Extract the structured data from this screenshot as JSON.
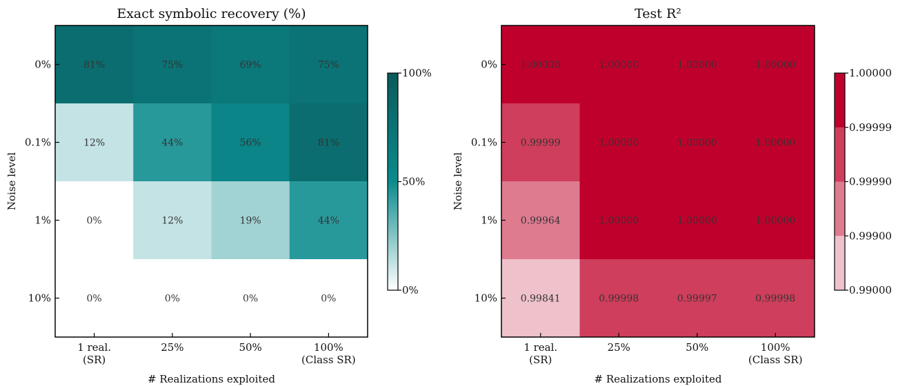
{
  "chart_data": [
    {
      "type": "heatmap",
      "title": "Exact symbolic recovery (%)",
      "xlabel": "# Realizations exploited",
      "ylabel": "Noise level",
      "x_categories": [
        [
          "1 real.",
          "(SR)"
        ],
        [
          "25%"
        ],
        [
          "50%"
        ],
        [
          "100%",
          "(Class SR)"
        ]
      ],
      "y_categories": [
        "0%",
        "0.1%",
        "1%",
        "10%"
      ],
      "values": [
        [
          81,
          75,
          69,
          75
        ],
        [
          12,
          44,
          56,
          81
        ],
        [
          0,
          12,
          19,
          44
        ],
        [
          0,
          0,
          0,
          0
        ]
      ],
      "cell_labels": [
        [
          "81%",
          "75%",
          "69%",
          "75%"
        ],
        [
          "12%",
          "44%",
          "56%",
          "81%"
        ],
        [
          "0%",
          "12%",
          "19%",
          "44%"
        ],
        [
          "0%",
          "0%",
          "0%",
          "0%"
        ]
      ],
      "color_range": [
        0,
        100
      ],
      "colormap": [
        "#ffffff",
        "#0b8b8d",
        "#0b5a5c"
      ],
      "colorbar_ticks": [
        "100%",
        "50%",
        "0%"
      ],
      "colorbar_tick_values": [
        100,
        50,
        0
      ]
    },
    {
      "type": "heatmap",
      "title": "Test R²",
      "xlabel": "# Realizations exploited",
      "ylabel": "Noise level",
      "x_categories": [
        [
          "1 real.",
          "(SR)"
        ],
        [
          "25%"
        ],
        [
          "50%"
        ],
        [
          "100%",
          "(Class SR)"
        ]
      ],
      "y_categories": [
        "0%",
        "0.1%",
        "1%",
        "10%"
      ],
      "values": [
        [
          1.0,
          1.0,
          1.0,
          1.0
        ],
        [
          0.99999,
          1.0,
          1.0,
          1.0
        ],
        [
          0.99964,
          1.0,
          1.0,
          1.0
        ],
        [
          0.99841,
          0.99998,
          0.99997,
          0.99998
        ]
      ],
      "cell_labels": [
        [
          "1.00000",
          "1.00000",
          "1.00000",
          "1.00000"
        ],
        [
          "0.99999",
          "1.00000",
          "1.00000",
          "1.00000"
        ],
        [
          "0.99964",
          "1.00000",
          "1.00000",
          "1.00000"
        ],
        [
          "0.99841",
          "0.99998",
          "0.99997",
          "0.99998"
        ]
      ],
      "cell_colors": [
        [
          "#c0002c",
          "#c0002c",
          "#c0002c",
          "#c0002c"
        ],
        [
          "#cf3e5c",
          "#c0002c",
          "#c0002c",
          "#c0002c"
        ],
        [
          "#de7b8f",
          "#c0002c",
          "#c0002c",
          "#c0002c"
        ],
        [
          "#eec1cb",
          "#cf3e5c",
          "#cf3e5c",
          "#cf3e5c"
        ]
      ],
      "colorbar_bins": [
        "#c0002c",
        "#cf3e5c",
        "#de7b8f",
        "#eec1cb"
      ],
      "colorbar_ticks": [
        "1.00000",
        "0.99999",
        "0.99990",
        "0.99900",
        "0.99000"
      ]
    }
  ]
}
